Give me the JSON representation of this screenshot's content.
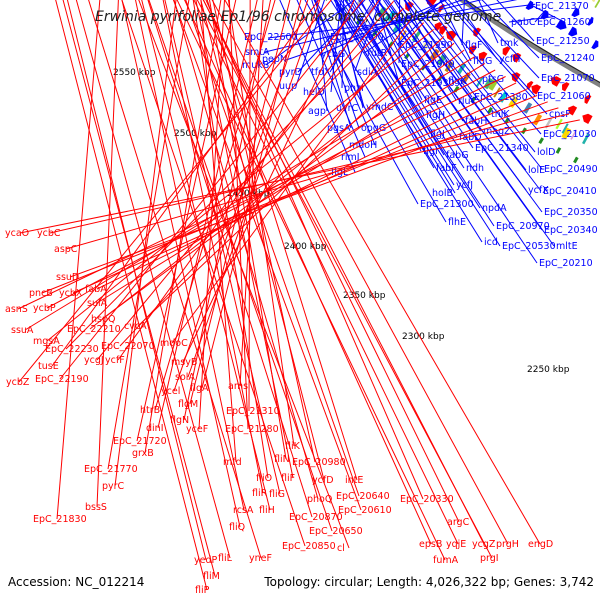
{
  "title": "Erwinia pyrifoliae Ep1/96 chromosome, complete genome",
  "accession": "Accession: NC_012214",
  "topology": "Topology: circular; Length: 4,026,322 bp; Genes: 3,742",
  "colors": {
    "forward_strand": "#0000ff",
    "reverse_strand": "#ff0000",
    "backbone": "#808080",
    "tick": "#228b22"
  },
  "ruler_labels": [
    "2550 kbp",
    "2500 kbp",
    "2450 kbp",
    "2400 kbp",
    "2350 kbp",
    "2300 kbp",
    "2250 kbp"
  ],
  "forward_labels": [
    "EpC_21370",
    "pabC",
    "EpC_21260",
    "EpC_22600",
    "EpC_22400",
    "smtA",
    "pepN",
    "ycbG",
    "rutR",
    "EpC_21990",
    "flgF",
    "tmk",
    "EpC_21250",
    "mukB",
    "pyrD",
    "tfoX",
    "sdiA",
    "EpC_21940",
    "flgG",
    "ycfH",
    "EpC_21240",
    "uup",
    "helD",
    "phzI",
    "EpC_21930",
    "flgK",
    "ptsG",
    "EpC_21070",
    "agp",
    "uvrC",
    "ymdC",
    "flgE",
    "rluC",
    "EpC_21380",
    "EpC_21060",
    "pgsA",
    "opgG",
    "flgH",
    "fabH",
    "thiK",
    "mdoH",
    "flgJ",
    "fabD",
    "magZ",
    "cpsF",
    "rimJ",
    "flgI",
    "fabG",
    "EpC_21340",
    "EpC_21030",
    "flgL",
    "fabF",
    "ndh",
    "lolD",
    "holB",
    "ycfJ",
    "lolE",
    "EpC_20490",
    "EpC_21300",
    "ycfX",
    "EpC_20410",
    "npdA",
    "EpC_20350",
    "flhE",
    "EpC_20970",
    "EpC_20340",
    "icd",
    "EpC_20530",
    "mltE",
    "EpC_20210"
  ],
  "reverse_labels": [
    "ycaO",
    "ycbC",
    "aspC",
    "ssuD",
    "pncB",
    "ycbX",
    "fabA",
    "asnS",
    "ycbP",
    "sulA",
    "ssuA",
    "hspQ",
    "EpC_22210",
    "cvcA",
    "mgsA",
    "EpC_22070",
    "mdoC",
    "EpC_22230",
    "ycgJ",
    "ycfF",
    "EpC_22190",
    "msyB",
    "ycbZ",
    "tusE",
    "solA",
    "ycel",
    "flgA",
    "flgM",
    "htrB",
    "flgN",
    "dinI",
    "ams",
    "EpC_21720",
    "EpC_21310",
    "grxB",
    "yceF",
    "EpC_21280",
    "EpC_21770",
    "fliK",
    "pyrC",
    "mfd",
    "fliN",
    "EpC_20980",
    "fliO",
    "fliF",
    "ycfD",
    "intE",
    "bssS",
    "EpC_21830",
    "fliR",
    "fliG",
    "phoQ",
    "EpC_20640",
    "EpC_20330",
    "rcsA",
    "fliH",
    "EpC_20610",
    "fliQ",
    "EpC_20870",
    "argC",
    "EpC_20650",
    "epsB",
    "yqjE",
    "ycgZ",
    "prgH",
    "engD",
    "EpC_20850",
    "cl",
    "fumA",
    "prgI",
    "yedP",
    "fliL",
    "yneF",
    "fliM",
    "fliP"
  ]
}
